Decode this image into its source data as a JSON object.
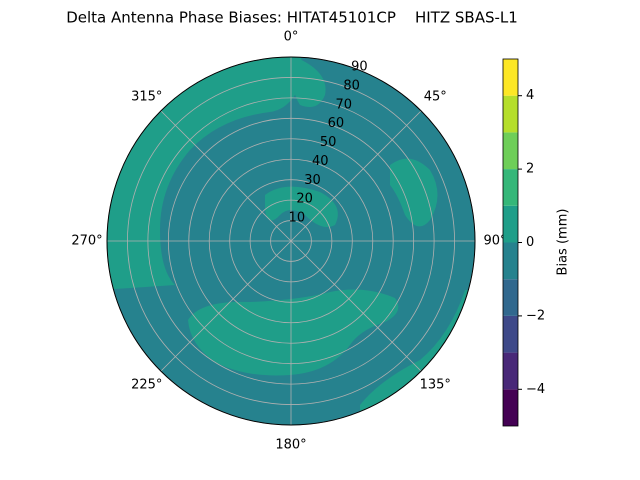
{
  "chart_data": {
    "type": "polar-contour",
    "title": "Delta Antenna Phase Biases: HITAT45101CP    HITZ SBAS-L1",
    "rlim": [
      0,
      90
    ],
    "rticks": [
      10,
      20,
      30,
      40,
      50,
      60,
      70,
      80,
      90
    ],
    "angle_ticks": [
      {
        "value": 0,
        "label": "0°"
      },
      {
        "value": 45,
        "label": "45°"
      },
      {
        "value": 90,
        "label": "90°"
      },
      {
        "value": 135,
        "label": "135°"
      },
      {
        "value": 180,
        "label": "180°"
      },
      {
        "value": 225,
        "label": "225°"
      },
      {
        "value": 270,
        "label": "270°"
      },
      {
        "value": 315,
        "label": "315°"
      }
    ],
    "grid": true,
    "colorbar": {
      "label": "Bias (mm)",
      "levels": [
        -5,
        -4,
        -3,
        -2,
        -1,
        0,
        1,
        2,
        3,
        4,
        5
      ],
      "colors": [
        "#440154",
        "#482878",
        "#3e4989",
        "#31688e",
        "#26828e",
        "#1f9e89",
        "#35b779",
        "#6ece58",
        "#b5de2b",
        "#fde725"
      ],
      "ticks": [
        {
          "value": -4,
          "label": "−4"
        },
        {
          "value": -2,
          "label": "−2"
        },
        0,
        2,
        4
      ]
    }
  }
}
